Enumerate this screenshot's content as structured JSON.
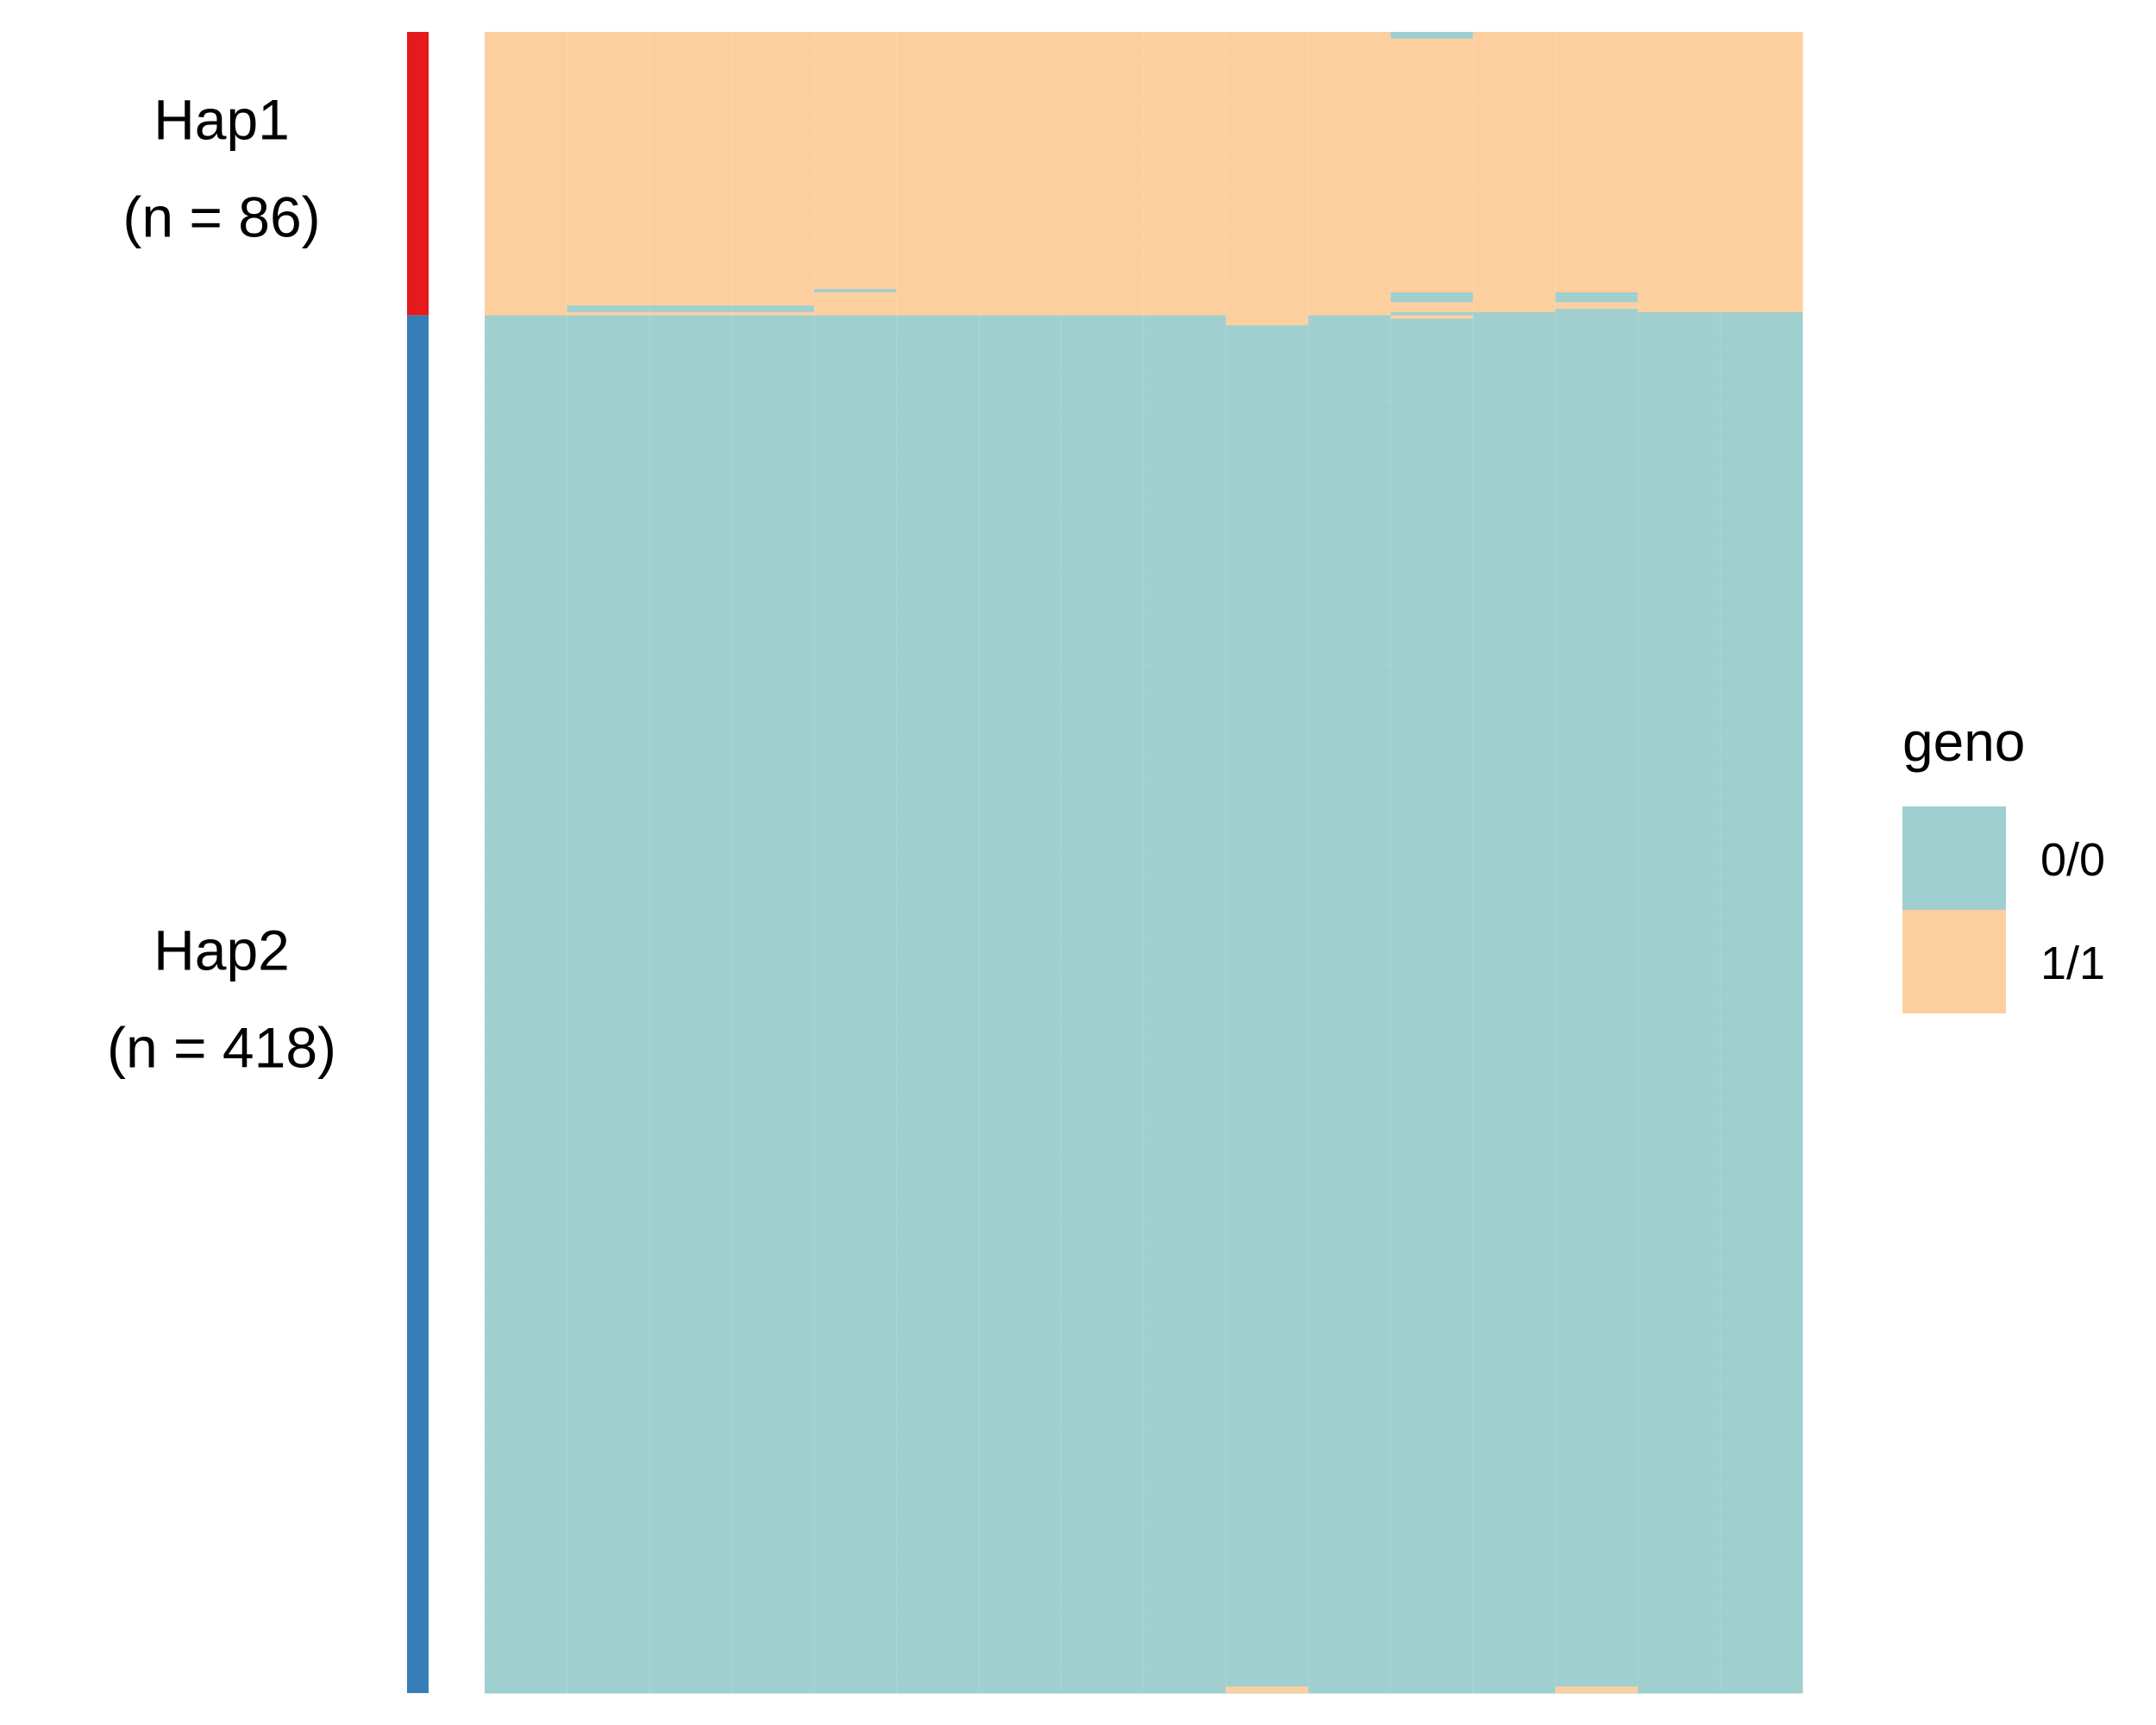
{
  "chart_data": {
    "type": "heatmap",
    "title": "",
    "n_variants": 16,
    "n_samples": 504,
    "groups": [
      {
        "label": "Hap1",
        "count_label": "(n = 86)",
        "n": 86,
        "color": "#E41A1C"
      },
      {
        "label": "Hap2",
        "count_label": "(n = 418)",
        "n": 418,
        "color": "#377EB8"
      }
    ],
    "geno_levels": [
      "0/0",
      "1/1"
    ],
    "geno_colors": {
      "0/0": "#A0CFCF",
      "1/1": "#FDCF9E"
    },
    "default_geno_by_group": {
      "Hap1": "1/1",
      "Hap2": "0/0"
    },
    "exceptions": [
      {
        "variant": 12,
        "geno": "0/0",
        "rows": [
          1,
          2
        ]
      },
      {
        "variant": 12,
        "geno": "0/0",
        "rows": [
          80,
          82
        ]
      },
      {
        "variant": 14,
        "geno": "0/0",
        "rows": [
          80,
          82
        ]
      },
      {
        "variant": 2,
        "geno": "0/0",
        "rows": [
          84,
          85
        ]
      },
      {
        "variant": 3,
        "geno": "0/0",
        "rows": [
          84,
          85
        ]
      },
      {
        "variant": 4,
        "geno": "0/0",
        "rows": [
          84,
          85
        ]
      },
      {
        "variant": 5,
        "geno": "0/0",
        "rows": [
          79,
          79
        ]
      },
      {
        "variant": 12,
        "geno": "0/0",
        "rows": [
          86,
          86
        ]
      },
      {
        "variant": 13,
        "geno": "0/0",
        "rows": [
          86,
          86
        ]
      },
      {
        "variant": 14,
        "geno": "0/0",
        "rows": [
          85,
          86
        ]
      },
      {
        "variant": 15,
        "geno": "0/0",
        "rows": [
          86,
          86
        ]
      },
      {
        "variant": 16,
        "geno": "0/0",
        "rows": [
          86,
          86
        ]
      },
      {
        "variant": 10,
        "geno": "1/1",
        "rows": [
          87,
          89
        ]
      },
      {
        "variant": 12,
        "geno": "1/1",
        "rows": [
          87,
          87
        ]
      },
      {
        "variant": 10,
        "geno": "1/1",
        "rows": [
          503,
          504
        ]
      },
      {
        "variant": 14,
        "geno": "1/1",
        "rows": [
          503,
          504
        ]
      }
    ]
  },
  "legend": {
    "title": "geno",
    "items": [
      {
        "label": "0/0",
        "color": "#A0CFCF"
      },
      {
        "label": "1/1",
        "color": "#FDCF9E"
      }
    ]
  }
}
